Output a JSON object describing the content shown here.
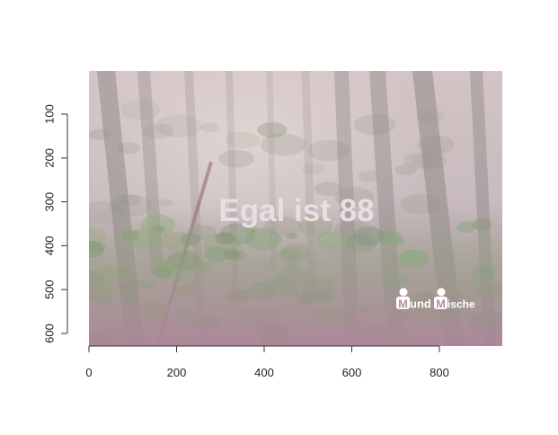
{
  "image": {
    "overlay_text": "Egal ist 88",
    "logo_text": {
      "part1": "M",
      "part2": "und",
      "part3": "M",
      "part4": "ische"
    },
    "colors": {
      "overlay_text": "#eadde4",
      "tint": "#c9a6b8",
      "foliage": "#6e9a62"
    }
  },
  "axes": {
    "x_ticks": [
      "0",
      "200",
      "400",
      "600",
      "800"
    ],
    "y_ticks": [
      "100",
      "200",
      "300",
      "400",
      "500",
      "600"
    ]
  }
}
